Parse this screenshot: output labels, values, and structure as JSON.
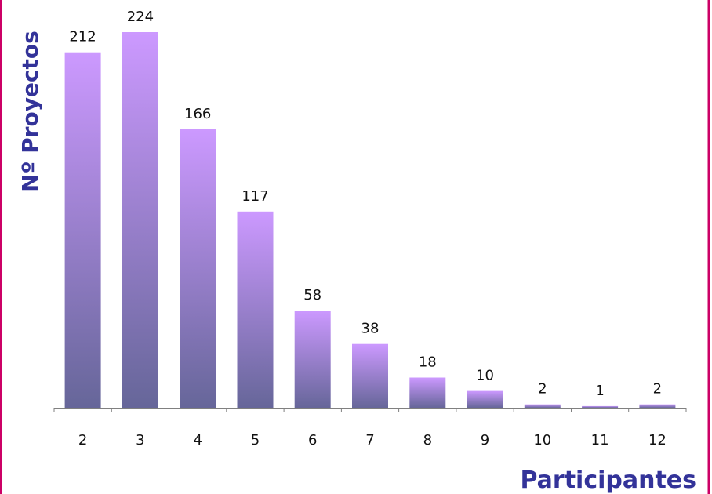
{
  "chart_data": {
    "type": "bar",
    "title": "",
    "xlabel": "Participantes",
    "ylabel": "Nº Proyectos",
    "categories": [
      "2",
      "3",
      "4",
      "5",
      "6",
      "7",
      "8",
      "9",
      "10",
      "11",
      "12"
    ],
    "values": [
      212,
      224,
      166,
      117,
      58,
      38,
      18,
      10,
      2,
      1,
      2
    ],
    "ylim": [
      0,
      224
    ],
    "grid": false,
    "legend": "none",
    "data_labels": true
  },
  "colors": {
    "bar_top": "#cc99ff",
    "bar_bottom": "#666699",
    "axis_title": "#333399",
    "axis_line": "#808080",
    "frame_border": "#cc0066"
  }
}
